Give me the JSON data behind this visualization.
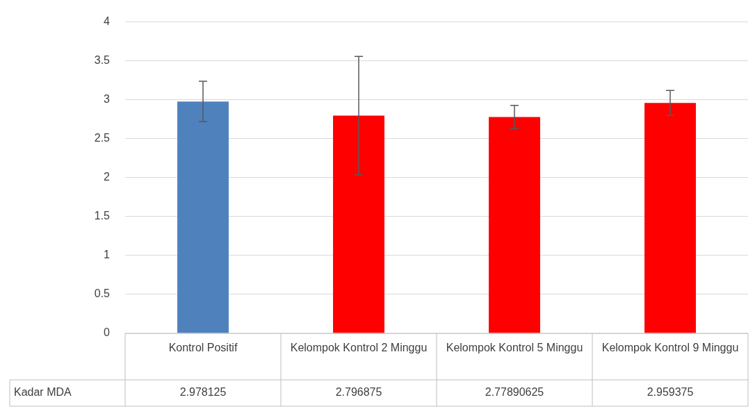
{
  "chart_data": {
    "type": "bar",
    "categories": [
      "Kontrol Positif",
      "Kelompok Kontrol 2 Minggu",
      "Kelompok Kontrol 5 Minggu",
      "Kelompok Kontrol 9 Minggu"
    ],
    "series": [
      {
        "name": "Kadar MDA",
        "colors": [
          "#4f81bd",
          "#ff0000",
          "#ff0000",
          "#ff0000"
        ],
        "values": [
          2.978125,
          2.796875,
          2.77890625,
          2.959375
        ],
        "errors": [
          0.26,
          0.76,
          0.15,
          0.16
        ]
      }
    ],
    "ylim": [
      0,
      4
    ],
    "yticks": [
      0,
      0.5,
      1,
      1.5,
      2,
      2.5,
      3,
      3.5,
      4
    ],
    "grid": "y",
    "legend": false,
    "data_labels": true
  }
}
